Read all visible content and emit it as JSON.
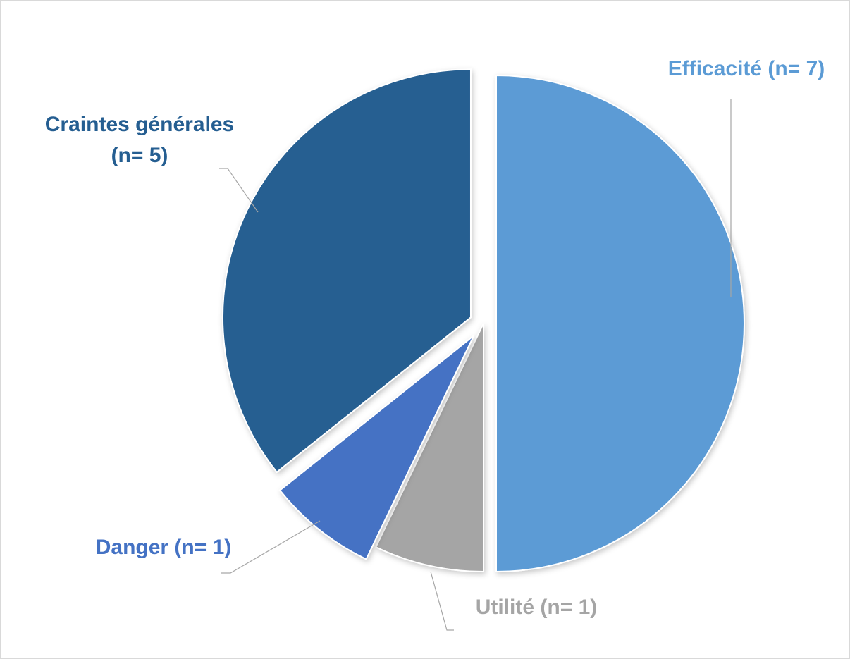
{
  "chart_data": {
    "type": "pie",
    "title": "",
    "start": "12 o'clock",
    "direction": "clockwise",
    "exploded": true,
    "legend": "none",
    "slices": [
      {
        "label": "Efficacité (n= 7)",
        "name": "Efficacité",
        "value": 7,
        "color": "#5b9bd5"
      },
      {
        "label": "Utilité (n= 1)",
        "name": "Utilité",
        "value": 1,
        "color": "#a5a5a5"
      },
      {
        "label": "Danger (n= 1)",
        "name": "Danger",
        "value": 1,
        "color": "#4472c4"
      },
      {
        "label_lines": [
          "Craintes générales",
          "(n= 5)"
        ],
        "name": "Craintes générales",
        "value": 5,
        "color": "#255e91"
      }
    ]
  }
}
